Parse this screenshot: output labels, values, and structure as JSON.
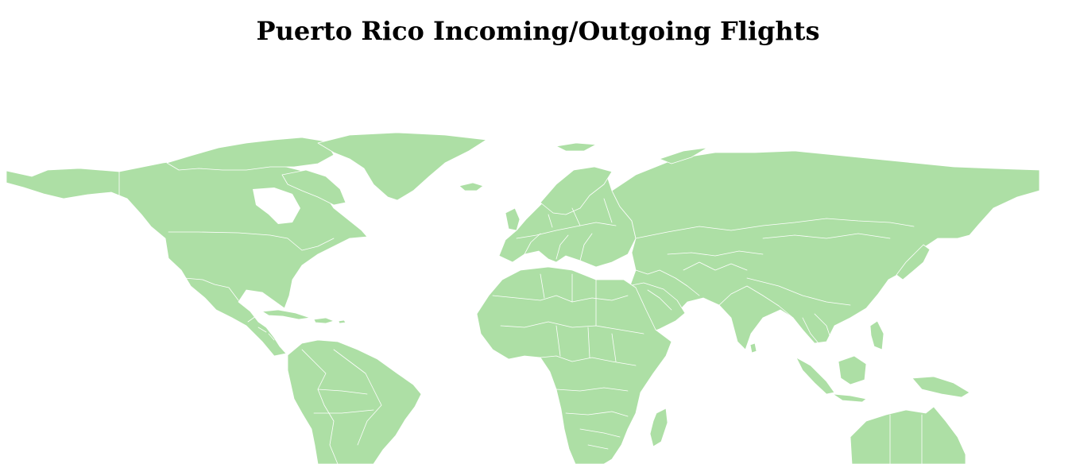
{
  "title": "Puerto Rico Incoming/Outgoing Flights",
  "colors": {
    "land": "#addfa5",
    "borders": "#ffffff",
    "background": "#ffffff"
  },
  "map": {
    "projection": "equirectangular world map",
    "flight_routes_shown": 0
  }
}
